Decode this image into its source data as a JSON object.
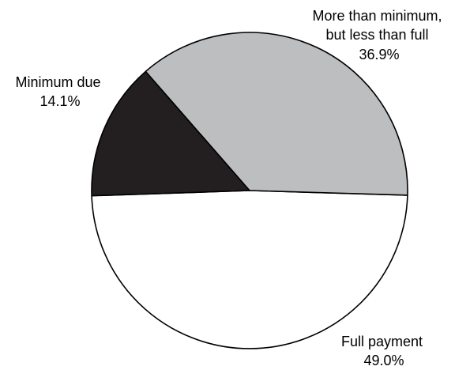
{
  "chart_data": {
    "type": "pie",
    "title": "",
    "slices": [
      {
        "label_lines": [
          "Full payment"
        ],
        "value": 49.0,
        "value_label": "49.0%",
        "color": "#ffffff"
      },
      {
        "label_lines": [
          "Minimum due"
        ],
        "value": 14.1,
        "value_label": "14.1%",
        "color": "#231f20"
      },
      {
        "label_lines": [
          "More than minimum,",
          "but less than full"
        ],
        "value": 36.9,
        "value_label": "36.9%",
        "color": "#bcbec0"
      }
    ],
    "start_angle_deg": 1.7,
    "direction": "clockwise",
    "outline_color": "#000000",
    "legend": "none"
  }
}
